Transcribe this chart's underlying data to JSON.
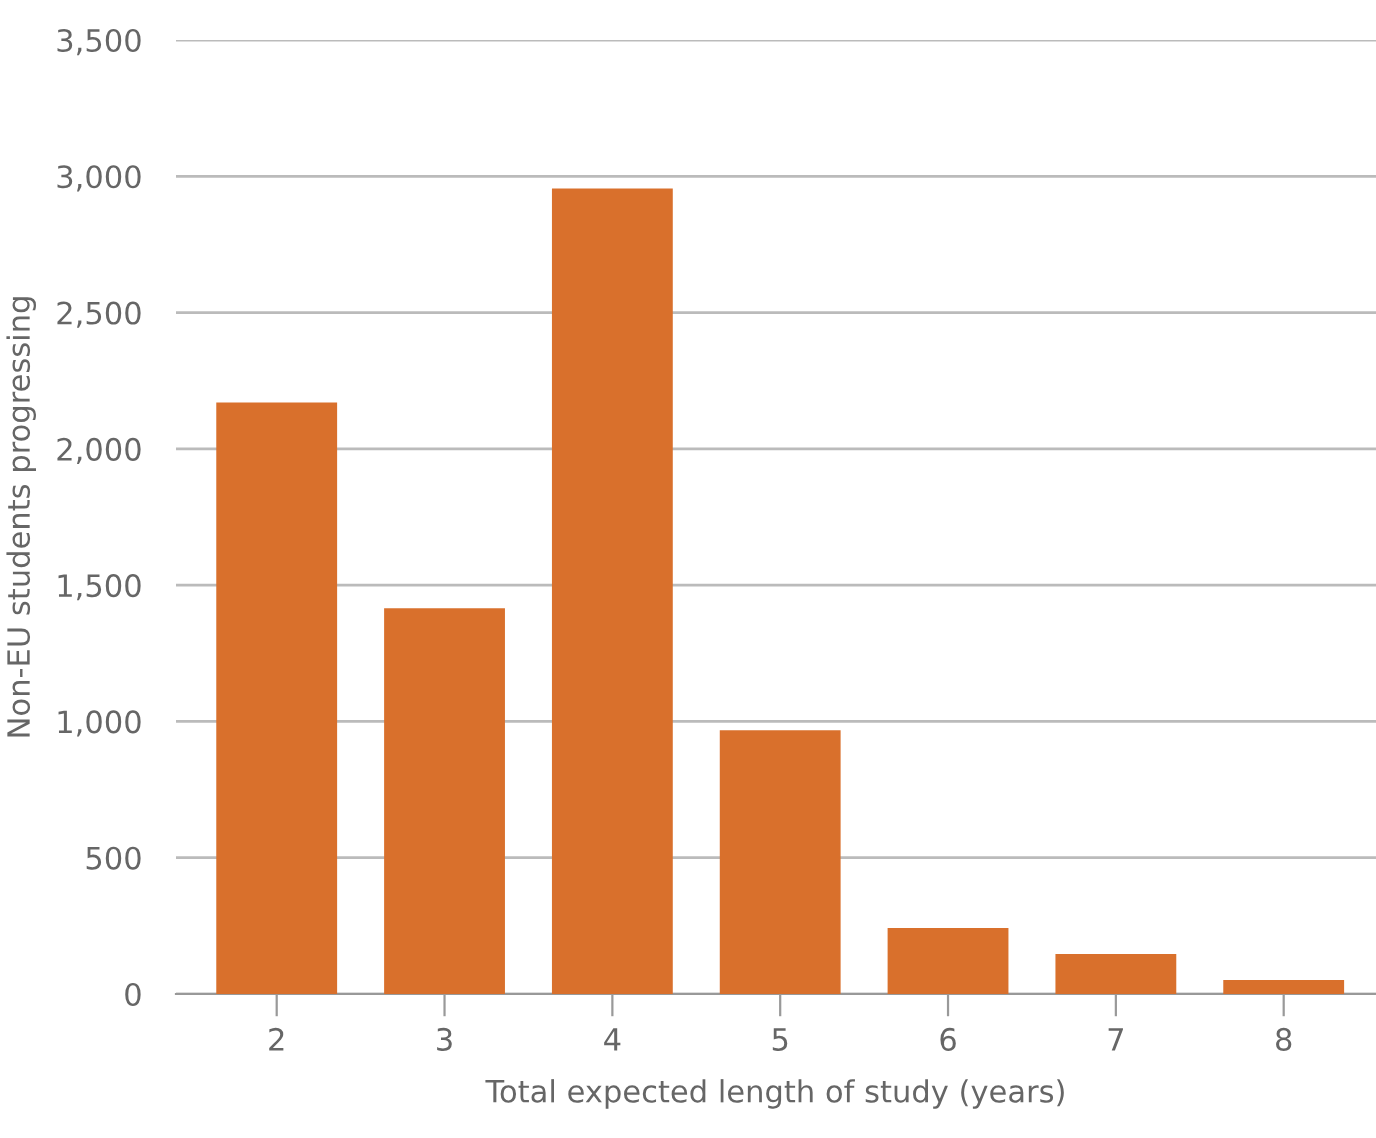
{
  "chart_data": {
    "type": "bar",
    "xlabel": "Total expected length of study (years)",
    "ylabel": "Non-EU students progressing",
    "categories": [
      "2",
      "3",
      "4",
      "5",
      "6",
      "7",
      "8"
    ],
    "values": [
      2170,
      1415,
      2955,
      968,
      242,
      147,
      51
    ],
    "color": "#d9702c",
    "ylim": [
      0,
      3500
    ],
    "yticks": [
      {
        "value": 0,
        "label": "0"
      },
      {
        "value": 500,
        "label": "500"
      },
      {
        "value": 1000,
        "label": "1,000"
      },
      {
        "value": 1500,
        "label": "1,500"
      },
      {
        "value": 2000,
        "label": "2,000"
      },
      {
        "value": 2500,
        "label": "2,500"
      },
      {
        "value": 3000,
        "label": "3,000"
      },
      {
        "value": 3500,
        "label": "3,500"
      }
    ],
    "grid": "y"
  }
}
